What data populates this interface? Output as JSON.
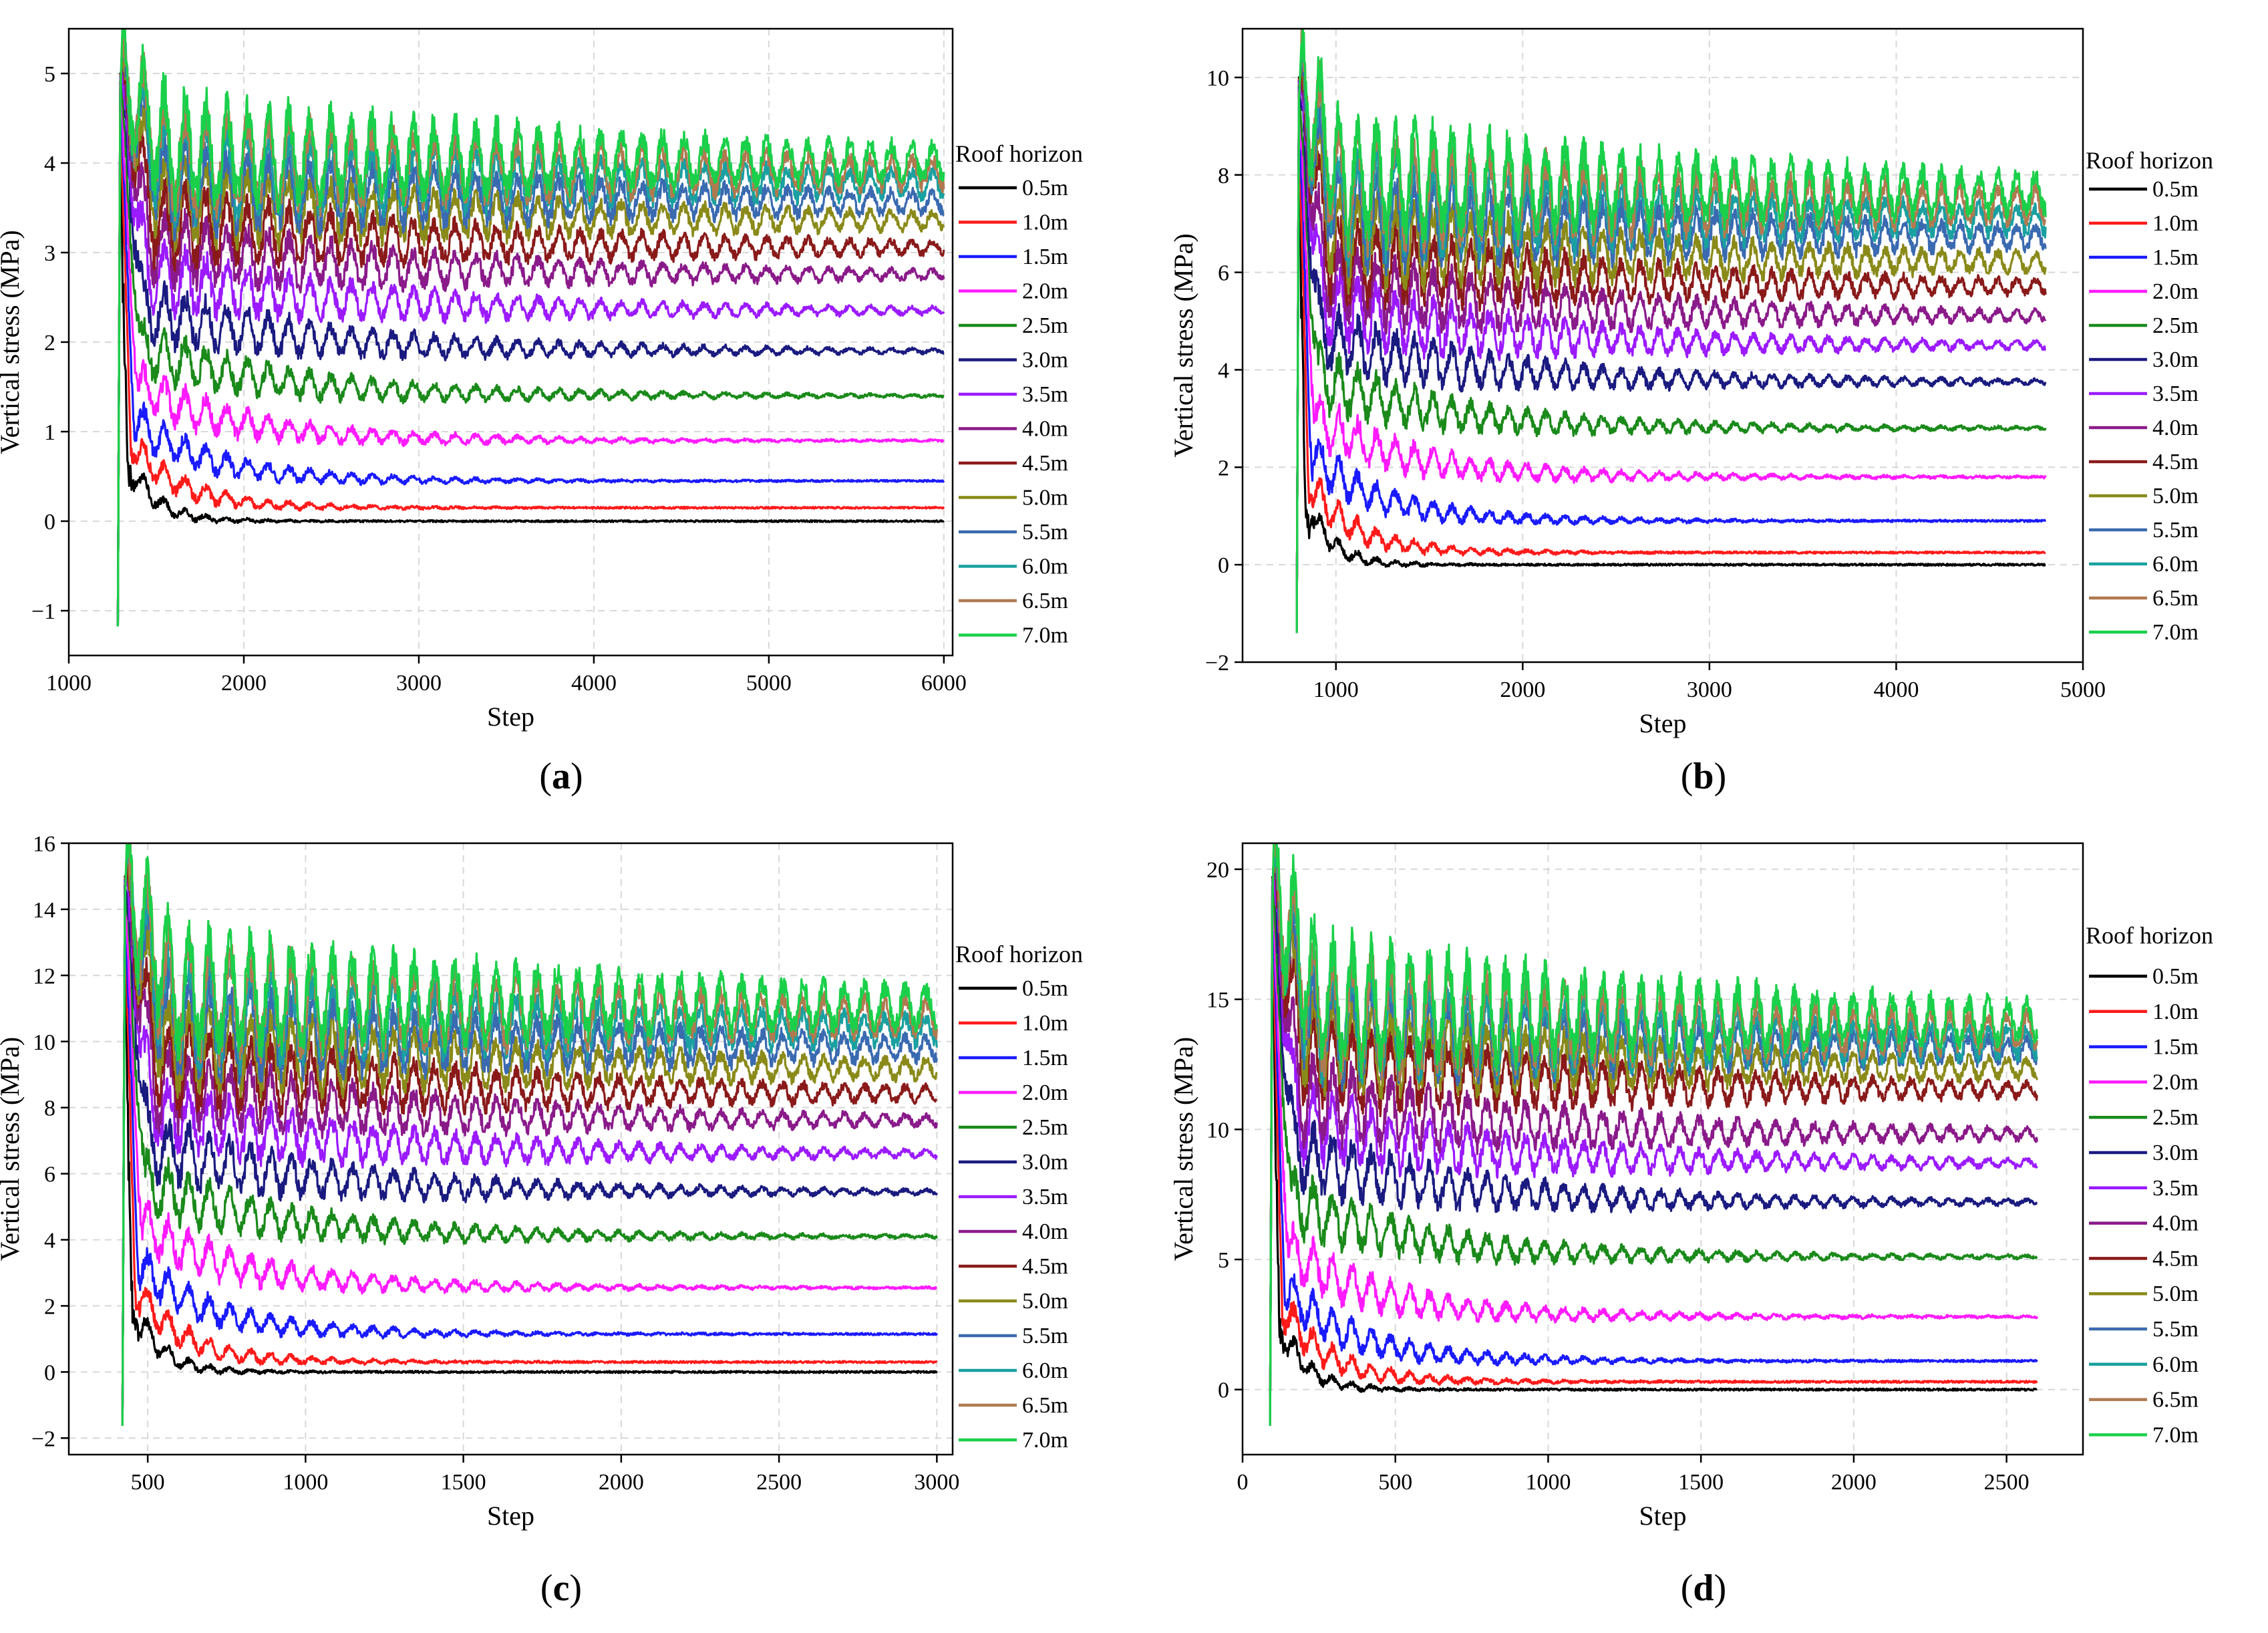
{
  "colors": {
    "0.5m": "#000000",
    "1.0m": "#ff1a1a",
    "1.5m": "#1a1aff",
    "2.0m": "#ff1aff",
    "2.5m": "#1a8a1a",
    "3.0m": "#1a1a80",
    "3.5m": "#9b1aff",
    "4.0m": "#8a1a8a",
    "4.5m": "#8a1a1a",
    "5.0m": "#8a8a1a",
    "5.5m": "#3a6ab0",
    "6.0m": "#1aa0a0",
    "6.5m": "#b07a50",
    "7.0m": "#1ad04a"
  },
  "chart_data": [
    {
      "type": "line",
      "panel": "a",
      "caption": "(a)",
      "caption_letter": "a",
      "xlabel": "Step",
      "ylabel": "Vertical stress (MPa)",
      "xlim": [
        1000,
        6050
      ],
      "ylim": [
        -1.5,
        5.5
      ],
      "xticks": [
        1000,
        2000,
        3000,
        4000,
        5000,
        6000
      ],
      "yticks": [
        -1,
        0,
        1,
        2,
        3,
        4,
        5
      ],
      "ytick_labels": [
        "−1",
        "0",
        "1",
        "2",
        "3",
        "4",
        "5"
      ],
      "legend_title": "Roof horizon",
      "legend_position": "right",
      "grid": true,
      "x_start": 1280,
      "x_end": 6000,
      "peak": 5.0,
      "series": [
        {
          "name": "0.5m",
          "final": 0.0
        },
        {
          "name": "1.0m",
          "final": 0.15
        },
        {
          "name": "1.5m",
          "final": 0.45
        },
        {
          "name": "2.0m",
          "final": 0.9
        },
        {
          "name": "2.5m",
          "final": 1.4
        },
        {
          "name": "3.0m",
          "final": 1.9
        },
        {
          "name": "3.5m",
          "final": 2.35
        },
        {
          "name": "4.0m",
          "final": 2.75
        },
        {
          "name": "4.5m",
          "final": 3.05
        },
        {
          "name": "5.0m",
          "final": 3.35
        },
        {
          "name": "5.5m",
          "final": 3.55
        },
        {
          "name": "6.0m",
          "final": 3.75
        },
        {
          "name": "6.5m",
          "final": 3.88
        },
        {
          "name": "7.0m",
          "final": 4.0
        }
      ]
    },
    {
      "type": "line",
      "panel": "b",
      "caption": "(b)",
      "caption_letter": "b",
      "xlabel": "Step",
      "ylabel": "Vertical stress (MPa)",
      "xlim": [
        500,
        5000
      ],
      "ylim": [
        -2,
        11
      ],
      "xticks": [
        1000,
        2000,
        3000,
        4000,
        5000
      ],
      "yticks": [
        -2,
        0,
        2,
        4,
        6,
        8,
        10
      ],
      "ytick_labels": [
        "−2",
        "0",
        "2",
        "4",
        "6",
        "8",
        "10"
      ],
      "legend_title": "Roof horizon",
      "legend_position": "right",
      "grid": true,
      "x_start": 790,
      "x_end": 4800,
      "peak": 10.0,
      "series": [
        {
          "name": "0.5m",
          "final": 0.0
        },
        {
          "name": "1.0m",
          "final": 0.25
        },
        {
          "name": "1.5m",
          "final": 0.9
        },
        {
          "name": "2.0m",
          "final": 1.8
        },
        {
          "name": "2.5m",
          "final": 2.8
        },
        {
          "name": "3.0m",
          "final": 3.75
        },
        {
          "name": "3.5m",
          "final": 4.5
        },
        {
          "name": "4.0m",
          "final": 5.1
        },
        {
          "name": "4.5m",
          "final": 5.7
        },
        {
          "name": "5.0m",
          "final": 6.2
        },
        {
          "name": "5.5m",
          "final": 6.7
        },
        {
          "name": "6.0m",
          "final": 7.05
        },
        {
          "name": "6.5m",
          "final": 7.35
        },
        {
          "name": "7.0m",
          "final": 7.6
        }
      ]
    },
    {
      "type": "line",
      "panel": "c",
      "caption": "(c)",
      "caption_letter": "c",
      "xlabel": "Step",
      "ylabel": "Vertical stress (MPa)",
      "xlim": [
        250,
        3050
      ],
      "ylim": [
        -2.5,
        16
      ],
      "xticks": [
        500,
        1000,
        1500,
        2000,
        2500,
        3000
      ],
      "yticks": [
        -2,
        0,
        2,
        4,
        6,
        8,
        10,
        12,
        14,
        16
      ],
      "ytick_labels": [
        "−2",
        "0",
        "2",
        "4",
        "6",
        "8",
        "10",
        "12",
        "14",
        "16"
      ],
      "legend_title": "Roof horizon",
      "legend_position": "right",
      "grid": true,
      "x_start": 420,
      "x_end": 3000,
      "peak": 15.0,
      "series": [
        {
          "name": "0.5m",
          "final": 0.0
        },
        {
          "name": "1.0m",
          "final": 0.3
        },
        {
          "name": "1.5m",
          "final": 1.15
        },
        {
          "name": "2.0m",
          "final": 2.55
        },
        {
          "name": "2.5m",
          "final": 4.1
        },
        {
          "name": "3.0m",
          "final": 5.45
        },
        {
          "name": "3.5m",
          "final": 6.6
        },
        {
          "name": "4.0m",
          "final": 7.6
        },
        {
          "name": "4.5m",
          "final": 8.4
        },
        {
          "name": "5.0m",
          "final": 9.15
        },
        {
          "name": "5.5m",
          "final": 9.75
        },
        {
          "name": "6.0m",
          "final": 10.3
        },
        {
          "name": "6.5m",
          "final": 10.7
        },
        {
          "name": "7.0m",
          "final": 11.0
        }
      ]
    },
    {
      "type": "line",
      "panel": "d",
      "caption": "(d)",
      "caption_letter": "d",
      "xlabel": "Step",
      "ylabel": "Vertical stress (MPa)",
      "xlim": [
        0,
        2750
      ],
      "ylim": [
        -2.5,
        21
      ],
      "xticks": [
        0,
        500,
        1000,
        1500,
        2000,
        2500
      ],
      "yticks": [
        0,
        5,
        10,
        15,
        20
      ],
      "ytick_labels": [
        "0",
        "5",
        "10",
        "15",
        "20"
      ],
      "legend_title": "Roof horizon",
      "legend_position": "right",
      "grid": true,
      "x_start": 90,
      "x_end": 2600,
      "peak": 19.7,
      "series": [
        {
          "name": "0.5m",
          "final": 0.0
        },
        {
          "name": "1.0m",
          "final": 0.3
        },
        {
          "name": "1.5m",
          "final": 1.1
        },
        {
          "name": "2.0m",
          "final": 2.8
        },
        {
          "name": "2.5m",
          "final": 5.1
        },
        {
          "name": "3.0m",
          "final": 7.2
        },
        {
          "name": "3.5m",
          "final": 8.7
        },
        {
          "name": "4.0m",
          "final": 9.8
        },
        {
          "name": "4.5m",
          "final": 11.5
        },
        {
          "name": "5.0m",
          "final": 12.3
        },
        {
          "name": "5.5m",
          "final": 13.0
        },
        {
          "name": "6.0m",
          "final": 13.3
        },
        {
          "name": "6.5m",
          "final": 13.7
        },
        {
          "name": "7.0m",
          "final": 14.1
        }
      ]
    }
  ]
}
